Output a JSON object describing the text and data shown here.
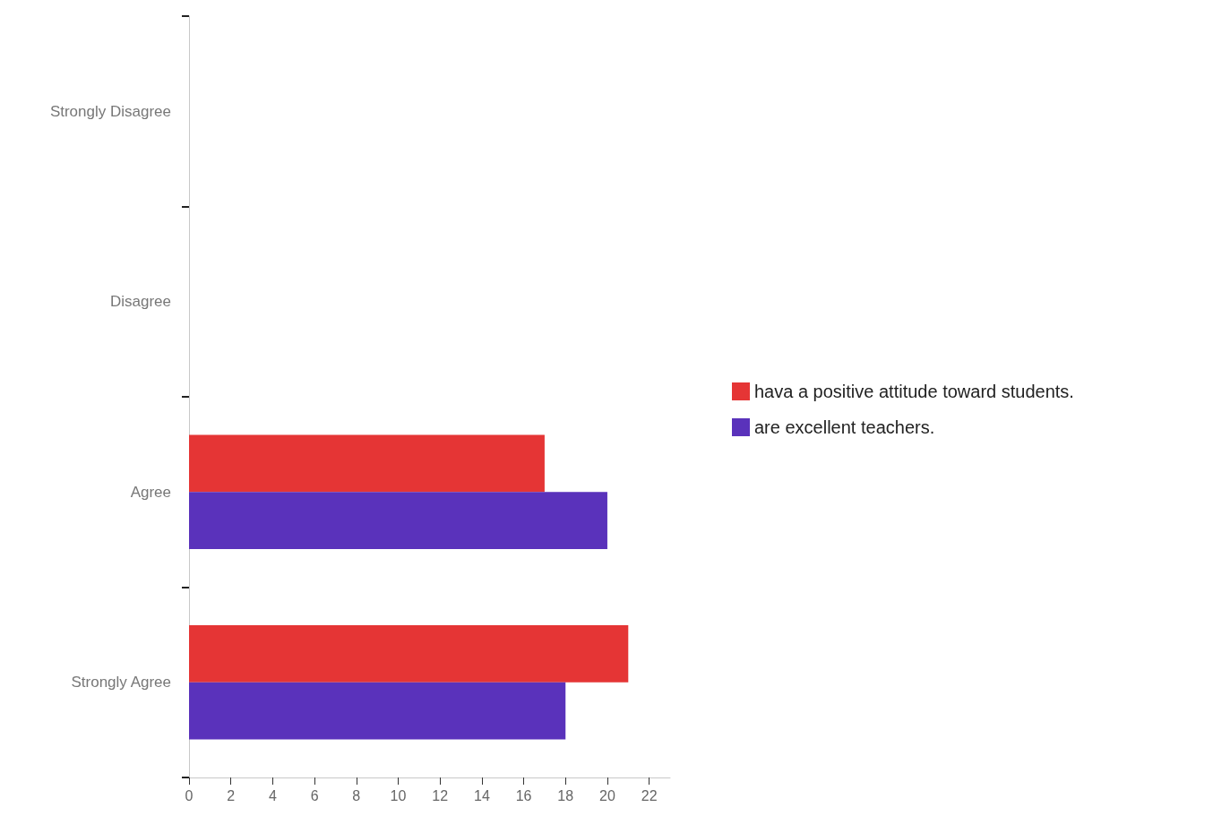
{
  "chart_data": {
    "type": "bar",
    "orientation": "horizontal",
    "categories": [
      "Strongly Disagree",
      "Disagree",
      "Agree",
      "Strongly Agree"
    ],
    "series": [
      {
        "name": "hava a positive attitude toward students.",
        "color": "#e53535",
        "values": [
          0,
          0,
          17,
          21
        ]
      },
      {
        "name": "are excellent teachers.",
        "color": "#5a32bb",
        "values": [
          0,
          0,
          20,
          18
        ]
      }
    ],
    "xlim": [
      0,
      23
    ],
    "xticks": [
      0,
      2,
      4,
      6,
      8,
      10,
      12,
      14,
      16,
      18,
      20,
      22
    ],
    "grid": false,
    "legend": "right"
  }
}
